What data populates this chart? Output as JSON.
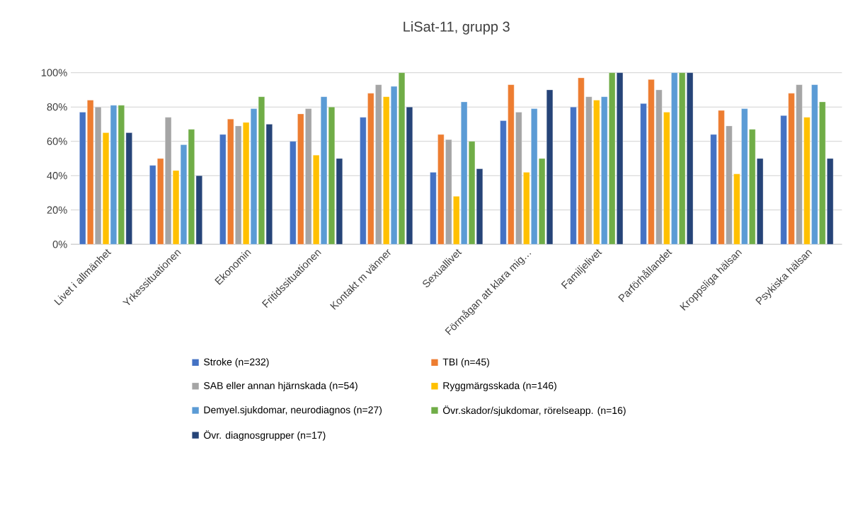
{
  "chart_data": {
    "type": "bar",
    "title": "LiSat-11, grupp 3",
    "categories": [
      "Livet i allmänhet",
      "Yrkessituationen",
      "Ekonomin",
      "Fritidssituationen",
      "Kontakt m vänner",
      "Sexuallivet",
      "Förmågan att klara mig…",
      "Familjelivet",
      "Parförhållandet",
      "Kroppsliga hälsan",
      "Psykiska hälsan"
    ],
    "series": [
      {
        "name": "Stroke  (n=232)",
        "color": "#4472c4",
        "values": [
          77,
          46,
          64,
          60,
          74,
          42,
          72,
          80,
          82,
          64,
          75
        ]
      },
      {
        "name": "TBI (n=45)",
        "color": "#ed7d31",
        "values": [
          84,
          50,
          73,
          76,
          88,
          64,
          93,
          97,
          96,
          78,
          88
        ]
      },
      {
        "name": "SAB eller annan hjärnskada (n=54)",
        "color": "#a5a5a5",
        "values": [
          80,
          74,
          69,
          79,
          93,
          61,
          77,
          86,
          90,
          69,
          93
        ]
      },
      {
        "name": "Ryggmärgsskada (n=146)",
        "color": "#ffc000",
        "values": [
          65,
          43,
          71,
          52,
          86,
          28,
          42,
          84,
          77,
          41,
          74
        ]
      },
      {
        "name": "Demyel.sjukdomar, neurodiagnos (n=27)",
        "color": "#5b9bd5",
        "values": [
          81,
          58,
          79,
          86,
          92,
          83,
          79,
          86,
          100,
          79,
          93
        ]
      },
      {
        "name": "Övr.skador/sjukdomar, rörelseapp. (n=16)",
        "color": "#70ad47",
        "values": [
          81,
          67,
          86,
          80,
          100,
          60,
          50,
          100,
          100,
          67,
          83
        ]
      },
      {
        "name": "Övr. diagnosgrupper (n=17)",
        "color": "#264478",
        "values": [
          65,
          40,
          70,
          50,
          80,
          44,
          90,
          100,
          100,
          50,
          50
        ]
      }
    ],
    "ylim": [
      0,
      100
    ],
    "yticks": [
      {
        "value": 0,
        "label": "0%"
      },
      {
        "value": 20,
        "label": "20%"
      },
      {
        "value": 40,
        "label": "40%"
      },
      {
        "value": 60,
        "label": "60%"
      },
      {
        "value": 80,
        "label": "80%"
      },
      {
        "value": 100,
        "label": "100%"
      }
    ],
    "grid": "y",
    "legend": "bottom"
  }
}
